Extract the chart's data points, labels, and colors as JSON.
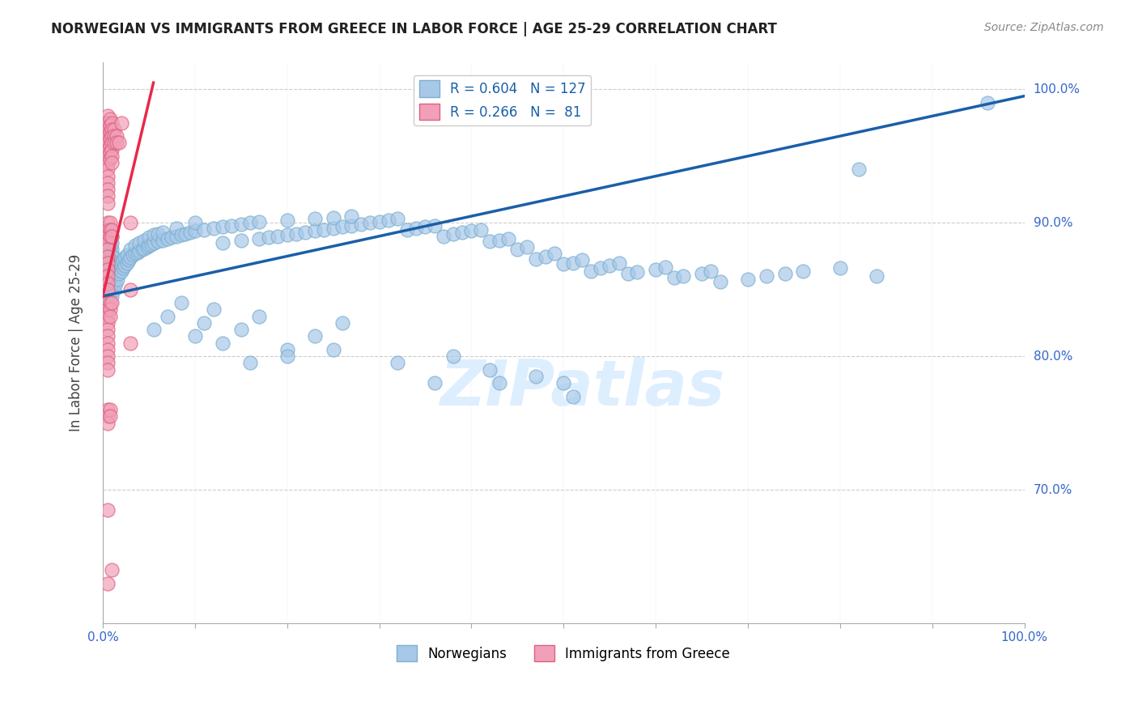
{
  "title": "NORWEGIAN VS IMMIGRANTS FROM GREECE IN LABOR FORCE | AGE 25-29 CORRELATION CHART",
  "source": "Source: ZipAtlas.com",
  "ylabel": "In Labor Force | Age 25-29",
  "legend_blue_r": "0.604",
  "legend_blue_n": "127",
  "legend_pink_r": "0.266",
  "legend_pink_n": "81",
  "legend_blue_label": "Norwegians",
  "legend_pink_label": "Immigrants from Greece",
  "blue_color": "#a8c8e8",
  "pink_color": "#f0a0b8",
  "blue_edge_color": "#7aafd0",
  "pink_edge_color": "#e06080",
  "blue_line_color": "#1a5fa8",
  "pink_line_color": "#e8294a",
  "title_color": "#222222",
  "source_color": "#888888",
  "axis_label_color": "#3366cc",
  "grid_color": "#cccccc",
  "watermark_color": "#ddeeff",
  "xlim": [
    0.0,
    1.0
  ],
  "ylim": [
    0.6,
    1.02
  ],
  "blue_line_x": [
    0.0,
    1.0
  ],
  "blue_line_y": [
    0.845,
    0.995
  ],
  "pink_line_x": [
    0.0,
    0.055
  ],
  "pink_line_y": [
    0.845,
    1.005
  ],
  "blue_dots": [
    [
      0.005,
      0.845
    ],
    [
      0.005,
      0.85
    ],
    [
      0.007,
      0.857
    ],
    [
      0.007,
      0.862
    ],
    [
      0.008,
      0.868
    ],
    [
      0.008,
      0.873
    ],
    [
      0.009,
      0.878
    ],
    [
      0.009,
      0.883
    ],
    [
      0.01,
      0.845
    ],
    [
      0.01,
      0.853
    ],
    [
      0.01,
      0.86
    ],
    [
      0.01,
      0.865
    ],
    [
      0.01,
      0.87
    ],
    [
      0.01,
      0.875
    ],
    [
      0.01,
      0.88
    ],
    [
      0.01,
      0.885
    ],
    [
      0.01,
      0.89
    ],
    [
      0.012,
      0.85
    ],
    [
      0.012,
      0.856
    ],
    [
      0.012,
      0.862
    ],
    [
      0.012,
      0.868
    ],
    [
      0.012,
      0.874
    ],
    [
      0.014,
      0.855
    ],
    [
      0.014,
      0.862
    ],
    [
      0.014,
      0.868
    ],
    [
      0.016,
      0.858
    ],
    [
      0.016,
      0.864
    ],
    [
      0.016,
      0.87
    ],
    [
      0.018,
      0.862
    ],
    [
      0.018,
      0.868
    ],
    [
      0.02,
      0.864
    ],
    [
      0.02,
      0.87
    ],
    [
      0.022,
      0.866
    ],
    [
      0.022,
      0.872
    ],
    [
      0.024,
      0.868
    ],
    [
      0.024,
      0.874
    ],
    [
      0.026,
      0.87
    ],
    [
      0.026,
      0.876
    ],
    [
      0.028,
      0.872
    ],
    [
      0.03,
      0.874
    ],
    [
      0.03,
      0.88
    ],
    [
      0.033,
      0.876
    ],
    [
      0.035,
      0.877
    ],
    [
      0.035,
      0.883
    ],
    [
      0.038,
      0.878
    ],
    [
      0.04,
      0.879
    ],
    [
      0.04,
      0.885
    ],
    [
      0.043,
      0.88
    ],
    [
      0.045,
      0.881
    ],
    [
      0.045,
      0.887
    ],
    [
      0.048,
      0.882
    ],
    [
      0.05,
      0.883
    ],
    [
      0.05,
      0.889
    ],
    [
      0.053,
      0.884
    ],
    [
      0.055,
      0.885
    ],
    [
      0.055,
      0.891
    ],
    [
      0.06,
      0.886
    ],
    [
      0.06,
      0.892
    ],
    [
      0.065,
      0.887
    ],
    [
      0.065,
      0.893
    ],
    [
      0.07,
      0.888
    ],
    [
      0.075,
      0.889
    ],
    [
      0.08,
      0.89
    ],
    [
      0.08,
      0.896
    ],
    [
      0.085,
      0.891
    ],
    [
      0.09,
      0.892
    ],
    [
      0.095,
      0.893
    ],
    [
      0.1,
      0.894
    ],
    [
      0.1,
      0.9
    ],
    [
      0.11,
      0.895
    ],
    [
      0.12,
      0.896
    ],
    [
      0.13,
      0.897
    ],
    [
      0.13,
      0.885
    ],
    [
      0.14,
      0.898
    ],
    [
      0.15,
      0.899
    ],
    [
      0.15,
      0.887
    ],
    [
      0.16,
      0.9
    ],
    [
      0.17,
      0.888
    ],
    [
      0.17,
      0.901
    ],
    [
      0.18,
      0.889
    ],
    [
      0.19,
      0.89
    ],
    [
      0.2,
      0.891
    ],
    [
      0.2,
      0.902
    ],
    [
      0.21,
      0.892
    ],
    [
      0.22,
      0.893
    ],
    [
      0.23,
      0.894
    ],
    [
      0.23,
      0.903
    ],
    [
      0.24,
      0.895
    ],
    [
      0.25,
      0.896
    ],
    [
      0.25,
      0.904
    ],
    [
      0.26,
      0.897
    ],
    [
      0.27,
      0.898
    ],
    [
      0.27,
      0.905
    ],
    [
      0.28,
      0.899
    ],
    [
      0.29,
      0.9
    ],
    [
      0.3,
      0.901
    ],
    [
      0.31,
      0.902
    ],
    [
      0.32,
      0.903
    ],
    [
      0.33,
      0.895
    ],
    [
      0.34,
      0.896
    ],
    [
      0.35,
      0.897
    ],
    [
      0.36,
      0.898
    ],
    [
      0.37,
      0.89
    ],
    [
      0.38,
      0.892
    ],
    [
      0.39,
      0.893
    ],
    [
      0.4,
      0.894
    ],
    [
      0.41,
      0.895
    ],
    [
      0.42,
      0.886
    ],
    [
      0.43,
      0.887
    ],
    [
      0.44,
      0.888
    ],
    [
      0.45,
      0.88
    ],
    [
      0.46,
      0.882
    ],
    [
      0.47,
      0.873
    ],
    [
      0.48,
      0.875
    ],
    [
      0.49,
      0.877
    ],
    [
      0.5,
      0.869
    ],
    [
      0.51,
      0.87
    ],
    [
      0.52,
      0.872
    ],
    [
      0.53,
      0.864
    ],
    [
      0.54,
      0.866
    ],
    [
      0.55,
      0.868
    ],
    [
      0.56,
      0.87
    ],
    [
      0.57,
      0.862
    ],
    [
      0.58,
      0.863
    ],
    [
      0.6,
      0.865
    ],
    [
      0.61,
      0.867
    ],
    [
      0.62,
      0.859
    ],
    [
      0.63,
      0.86
    ],
    [
      0.65,
      0.862
    ],
    [
      0.66,
      0.864
    ],
    [
      0.67,
      0.856
    ],
    [
      0.7,
      0.858
    ],
    [
      0.72,
      0.86
    ],
    [
      0.74,
      0.862
    ],
    [
      0.76,
      0.864
    ],
    [
      0.8,
      0.866
    ],
    [
      0.82,
      0.94
    ],
    [
      0.84,
      0.86
    ],
    [
      0.055,
      0.82
    ],
    [
      0.07,
      0.83
    ],
    [
      0.085,
      0.84
    ],
    [
      0.1,
      0.815
    ],
    [
      0.11,
      0.825
    ],
    [
      0.12,
      0.835
    ],
    [
      0.13,
      0.81
    ],
    [
      0.15,
      0.82
    ],
    [
      0.17,
      0.83
    ],
    [
      0.2,
      0.805
    ],
    [
      0.23,
      0.815
    ],
    [
      0.26,
      0.825
    ],
    [
      0.16,
      0.795
    ],
    [
      0.2,
      0.8
    ],
    [
      0.25,
      0.805
    ],
    [
      0.32,
      0.795
    ],
    [
      0.38,
      0.8
    ],
    [
      0.42,
      0.79
    ],
    [
      0.47,
      0.785
    ],
    [
      0.36,
      0.78
    ],
    [
      0.43,
      0.78
    ],
    [
      0.5,
      0.78
    ],
    [
      0.51,
      0.77
    ],
    [
      0.96,
      0.99
    ]
  ],
  "pink_dots": [
    [
      0.005,
      0.98
    ],
    [
      0.005,
      0.975
    ],
    [
      0.005,
      0.97
    ],
    [
      0.005,
      0.965
    ],
    [
      0.005,
      0.96
    ],
    [
      0.005,
      0.955
    ],
    [
      0.005,
      0.95
    ],
    [
      0.005,
      0.945
    ],
    [
      0.005,
      0.94
    ],
    [
      0.005,
      0.935
    ],
    [
      0.005,
      0.93
    ],
    [
      0.005,
      0.925
    ],
    [
      0.005,
      0.92
    ],
    [
      0.005,
      0.915
    ],
    [
      0.008,
      0.978
    ],
    [
      0.008,
      0.973
    ],
    [
      0.008,
      0.968
    ],
    [
      0.008,
      0.963
    ],
    [
      0.008,
      0.958
    ],
    [
      0.008,
      0.953
    ],
    [
      0.008,
      0.948
    ],
    [
      0.01,
      0.975
    ],
    [
      0.01,
      0.97
    ],
    [
      0.01,
      0.965
    ],
    [
      0.01,
      0.96
    ],
    [
      0.01,
      0.955
    ],
    [
      0.01,
      0.95
    ],
    [
      0.01,
      0.945
    ],
    [
      0.012,
      0.97
    ],
    [
      0.012,
      0.965
    ],
    [
      0.012,
      0.96
    ],
    [
      0.015,
      0.965
    ],
    [
      0.015,
      0.96
    ],
    [
      0.018,
      0.96
    ],
    [
      0.02,
      0.975
    ],
    [
      0.005,
      0.9
    ],
    [
      0.005,
      0.895
    ],
    [
      0.005,
      0.89
    ],
    [
      0.005,
      0.885
    ],
    [
      0.005,
      0.88
    ],
    [
      0.005,
      0.875
    ],
    [
      0.005,
      0.87
    ],
    [
      0.005,
      0.865
    ],
    [
      0.005,
      0.86
    ],
    [
      0.005,
      0.855
    ],
    [
      0.005,
      0.85
    ],
    [
      0.008,
      0.9
    ],
    [
      0.008,
      0.895
    ],
    [
      0.008,
      0.89
    ],
    [
      0.01,
      0.895
    ],
    [
      0.01,
      0.89
    ],
    [
      0.005,
      0.84
    ],
    [
      0.005,
      0.835
    ],
    [
      0.005,
      0.83
    ],
    [
      0.005,
      0.825
    ],
    [
      0.005,
      0.82
    ],
    [
      0.005,
      0.815
    ],
    [
      0.005,
      0.81
    ],
    [
      0.005,
      0.805
    ],
    [
      0.005,
      0.8
    ],
    [
      0.005,
      0.795
    ],
    [
      0.005,
      0.79
    ],
    [
      0.008,
      0.84
    ],
    [
      0.008,
      0.835
    ],
    [
      0.008,
      0.83
    ],
    [
      0.01,
      0.84
    ],
    [
      0.005,
      0.76
    ],
    [
      0.005,
      0.755
    ],
    [
      0.005,
      0.75
    ],
    [
      0.008,
      0.76
    ],
    [
      0.008,
      0.755
    ],
    [
      0.03,
      0.9
    ],
    [
      0.03,
      0.85
    ],
    [
      0.03,
      0.81
    ],
    [
      0.005,
      0.685
    ],
    [
      0.01,
      0.64
    ],
    [
      0.005,
      0.63
    ]
  ]
}
